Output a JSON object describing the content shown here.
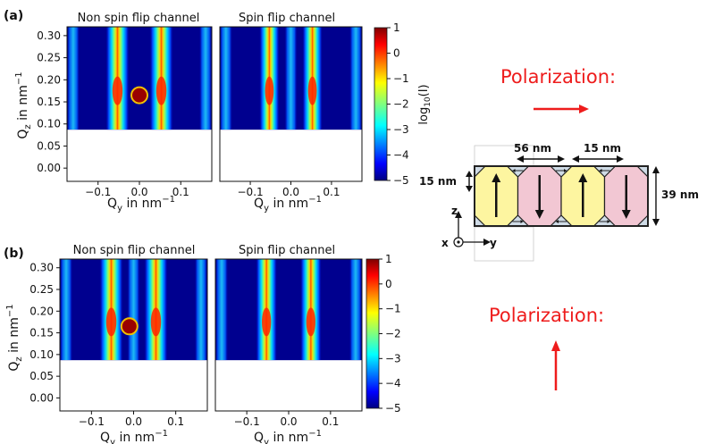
{
  "panels": {
    "a": {
      "label": "(a)",
      "left_title": "Non spin flip channel",
      "right_title": "Spin flip channel"
    },
    "b": {
      "label": "(b)",
      "left_title": "Non spin flip channel",
      "right_title": "Spin flip channel"
    }
  },
  "axes": {
    "y_ticks": [
      "0.30",
      "0.25",
      "0.20",
      "0.15",
      "0.10",
      "0.05",
      "0.00"
    ],
    "x_ticks": [
      "−0.1",
      "0.0",
      "0.1"
    ],
    "ylabel_main": "Q",
    "ylabel_sub": "z",
    "ylabel_rest": " in nm",
    "ylabel_sup": "−1",
    "xlabel_main": "Q",
    "xlabel_sub": "y",
    "xlabel_rest": " in nm",
    "xlabel_sup": "−1"
  },
  "colorbar": {
    "ticks": [
      "1",
      "0",
      "−1",
      "−2",
      "−3",
      "−4",
      "−5"
    ],
    "label": "log",
    "label_sub": "10",
    "label_rest": "(I)"
  },
  "chart_data": [
    {
      "type": "heatmap",
      "title": "Non spin flip channel",
      "xlabel": "Qy in nm⁻¹",
      "ylabel": "Qz in nm⁻¹",
      "xlim": [
        -0.175,
        0.175
      ],
      "ylim": [
        -0.03,
        0.32
      ],
      "colorbar_range": [
        -5,
        1
      ],
      "colorbar_label": "log10(I)",
      "data_ymin": 0.087,
      "stripes": [
        {
          "x": -0.16,
          "level": 0.35
        },
        {
          "x": -0.053,
          "level": 1.0
        },
        {
          "x": 0.053,
          "level": 1.0
        },
        {
          "x": 0.16,
          "level": 0.35
        }
      ],
      "beamstop": {
        "x": 0.0,
        "y": 0.165
      }
    },
    {
      "type": "heatmap",
      "title": "Spin flip channel",
      "xlabel": "Qy in nm⁻¹",
      "ylabel": "",
      "xlim": [
        -0.175,
        0.175
      ],
      "ylim": [
        -0.03,
        0.32
      ],
      "colorbar_range": [
        -5,
        1
      ],
      "data_ymin": 0.087,
      "stripes": [
        {
          "x": -0.16,
          "level": 0.3
        },
        {
          "x": -0.053,
          "level": 0.85
        },
        {
          "x": 0.0,
          "level": 0.45
        },
        {
          "x": 0.053,
          "level": 0.85
        },
        {
          "x": 0.16,
          "level": 0.3
        }
      ]
    },
    {
      "type": "heatmap",
      "title": "Non spin flip channel",
      "xlabel": "Qy in nm⁻¹",
      "ylabel": "Qz in nm⁻¹",
      "xlim": [
        -0.175,
        0.175
      ],
      "ylim": [
        -0.03,
        0.32
      ],
      "colorbar_range": [
        -5,
        1
      ],
      "colorbar_label": "",
      "data_ymin": 0.087,
      "stripes": [
        {
          "x": -0.16,
          "level": 0.35
        },
        {
          "x": -0.053,
          "level": 1.0
        },
        {
          "x": 0.0,
          "level": 0.45
        },
        {
          "x": 0.053,
          "level": 1.0
        },
        {
          "x": 0.16,
          "level": 0.35
        }
      ],
      "beamstop": {
        "x": -0.01,
        "y": 0.165
      }
    },
    {
      "type": "heatmap",
      "title": "Spin flip channel",
      "xlabel": "Qy in nm⁻¹",
      "ylabel": "",
      "xlim": [
        -0.175,
        0.175
      ],
      "ylim": [
        -0.03,
        0.32
      ],
      "colorbar_range": [
        -5,
        1
      ],
      "data_ymin": 0.087,
      "stripes": [
        {
          "x": -0.16,
          "level": 0.3
        },
        {
          "x": -0.053,
          "level": 0.9
        },
        {
          "x": 0.053,
          "level": 0.9
        },
        {
          "x": 0.16,
          "level": 0.3
        }
      ]
    }
  ],
  "polarization": {
    "top_title": "Polarization:",
    "bottom_title": "Polarization:",
    "top_direction": "right",
    "bottom_direction": "up"
  },
  "schematic": {
    "dim_width_a": "56 nm",
    "dim_width_b": "15 nm",
    "dim_height_left": "15 nm",
    "dim_height_right": "39 nm",
    "axis_z": "z",
    "axis_x": "x",
    "axis_y": "y",
    "domains": [
      "up",
      "down",
      "up",
      "down"
    ],
    "colors": {
      "yellow": "#fdf5a0",
      "pink": "#f2c7d3",
      "corner": "#cfdbe6",
      "arrow": "#ee1c1c"
    }
  }
}
